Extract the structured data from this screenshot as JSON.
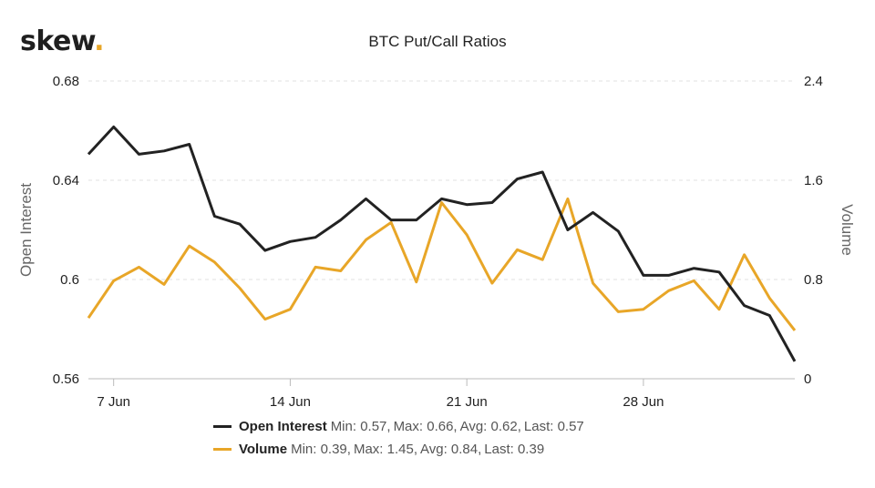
{
  "brand": {
    "name": "skew",
    "dot": "."
  },
  "chart_data": {
    "type": "line",
    "title": "BTC Put/Call Ratios",
    "left_axis": {
      "title": "Open Interest",
      "range": [
        0.56,
        0.68
      ],
      "ticks": [
        "0.56",
        "0.6",
        "0.64",
        "0.68"
      ],
      "tick_values": [
        0.56,
        0.6,
        0.64,
        0.68
      ]
    },
    "right_axis": {
      "title": "Volume",
      "range": [
        0,
        2.4
      ],
      "ticks": [
        "0",
        "0.8",
        "1.6",
        "2.4"
      ],
      "tick_values": [
        0,
        0.8,
        1.6,
        2.4
      ]
    },
    "x_ticks": [
      {
        "label": "7 Jun",
        "index": 1
      },
      {
        "label": "14 Jun",
        "index": 8
      },
      {
        "label": "21 Jun",
        "index": 15
      },
      {
        "label": "28 Jun",
        "index": 22
      }
    ],
    "colors": {
      "open_interest": "#222222",
      "volume": "#e8a628",
      "grid": "#e2e2e2",
      "axis": "#bbbbbb"
    },
    "series": [
      {
        "name": "Open Interest",
        "axis": "left",
        "values": [
          0.6505,
          0.6615,
          0.6505,
          0.6518,
          0.6545,
          0.6255,
          0.6223,
          0.6117,
          0.6153,
          0.617,
          0.624,
          0.6325,
          0.624,
          0.624,
          0.6325,
          0.6302,
          0.631,
          0.6405,
          0.6433,
          0.62,
          0.627,
          0.6195,
          0.6017,
          0.6017,
          0.6045,
          0.603,
          0.5895,
          0.5855,
          0.567
        ],
        "legend_stats": [
          "Min: 0.57,",
          "Max: 0.66,",
          "Avg: 0.62,",
          "Last: 0.57"
        ]
      },
      {
        "name": "Volume",
        "axis": "right",
        "values": [
          0.49,
          0.79,
          0.9,
          0.76,
          1.07,
          0.94,
          0.73,
          0.48,
          0.56,
          0.9,
          0.87,
          1.12,
          1.26,
          0.78,
          1.42,
          1.16,
          0.77,
          1.04,
          0.96,
          1.45,
          0.77,
          0.54,
          0.56,
          0.71,
          0.79,
          0.56,
          1.0,
          0.65,
          0.39
        ],
        "legend_stats": [
          "Min: 0.39,",
          "Max: 1.45,",
          "Avg: 0.84,",
          "Last: 0.39"
        ]
      }
    ]
  }
}
